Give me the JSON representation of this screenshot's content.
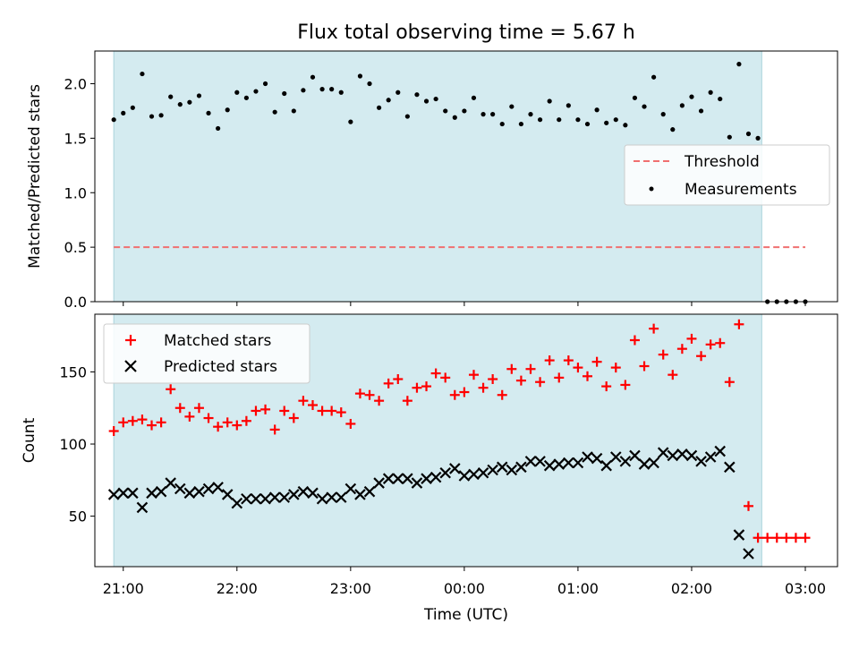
{
  "title": "Flux total observing time = 5.67 h",
  "xlabel": "Time (UTC)",
  "colors": {
    "threshold": "#f07070",
    "observing_span": "#d4ebf0",
    "observing_edge": "#a9d3dc",
    "matched": "#ff0000",
    "predicted": "#000000",
    "measurements": "#000000"
  },
  "chart_data": [
    {
      "type": "scatter",
      "title": "Flux total observing time = 5.67 h",
      "ylabel": "Matched/Predicted stars",
      "x_type": "time",
      "xlim": [
        "20:45",
        "03:17"
      ],
      "ylim": [
        0,
        2.3
      ],
      "x_ticks": [
        "21:00",
        "22:00",
        "23:00",
        "00:00",
        "01:00",
        "02:00",
        "03:00"
      ],
      "y_ticks": [
        "0.0",
        "0.5",
        "1.0",
        "1.5",
        "2.0"
      ],
      "shaded_span": [
        "20:55",
        "02:37"
      ],
      "legend_position": "center-right",
      "legend": [
        "Threshold",
        "Measurements"
      ],
      "threshold": {
        "name": "Threshold",
        "value": 0.5,
        "x_range": [
          "20:55",
          "03:00"
        ],
        "style": "dashed"
      },
      "series": [
        {
          "name": "Measurements",
          "x": [
            "20:55",
            "21:00",
            "21:05",
            "21:10",
            "21:15",
            "21:20",
            "21:25",
            "21:30",
            "21:35",
            "21:40",
            "21:45",
            "21:50",
            "21:55",
            "22:00",
            "22:05",
            "22:10",
            "22:15",
            "22:20",
            "22:25",
            "22:30",
            "22:35",
            "22:40",
            "22:45",
            "22:50",
            "22:55",
            "23:00",
            "23:05",
            "23:10",
            "23:15",
            "23:20",
            "23:25",
            "23:30",
            "23:35",
            "23:40",
            "23:45",
            "23:50",
            "23:55",
            "00:00",
            "00:05",
            "00:10",
            "00:15",
            "00:20",
            "00:25",
            "00:30",
            "00:35",
            "00:40",
            "00:45",
            "00:50",
            "00:55",
            "01:00",
            "01:05",
            "01:10",
            "01:15",
            "01:20",
            "01:25",
            "01:30",
            "01:35",
            "01:40",
            "01:45",
            "01:50",
            "01:55",
            "02:00",
            "02:05",
            "02:10",
            "02:15",
            "02:20",
            "02:25",
            "02:30",
            "02:35",
            "02:40",
            "02:45",
            "02:50",
            "02:55",
            "03:00"
          ],
          "y": [
            1.67,
            1.73,
            1.78,
            2.09,
            1.7,
            1.71,
            1.88,
            1.81,
            1.83,
            1.89,
            1.73,
            1.59,
            1.76,
            1.92,
            1.87,
            1.93,
            2.0,
            1.74,
            1.91,
            1.75,
            1.94,
            2.06,
            1.95,
            1.95,
            1.92,
            1.65,
            2.07,
            2.0,
            1.78,
            1.85,
            1.92,
            1.7,
            1.9,
            1.84,
            1.86,
            1.75,
            1.69,
            1.75,
            1.87,
            1.72,
            1.72,
            1.63,
            1.79,
            1.63,
            1.72,
            1.67,
            1.84,
            1.67,
            1.8,
            1.67,
            1.63,
            1.76,
            1.64,
            1.67,
            1.62,
            1.87,
            1.79,
            2.06,
            1.72,
            1.58,
            1.8,
            1.88,
            1.75,
            1.92,
            1.86,
            1.51,
            2.18,
            1.54,
            1.5,
            0,
            0,
            0,
            0,
            0
          ]
        }
      ]
    },
    {
      "type": "scatter",
      "ylabel": "Count",
      "x_type": "time",
      "xlim": [
        "20:45",
        "03:17"
      ],
      "ylim": [
        15,
        190
      ],
      "x_ticks": [
        "21:00",
        "22:00",
        "23:00",
        "00:00",
        "01:00",
        "02:00",
        "03:00"
      ],
      "y_ticks": [
        "50",
        "100",
        "150"
      ],
      "shaded_span": [
        "20:55",
        "02:37"
      ],
      "legend_position": "top-left",
      "legend": [
        "Matched stars",
        "Predicted stars"
      ],
      "x": [
        "20:55",
        "21:00",
        "21:05",
        "21:10",
        "21:15",
        "21:20",
        "21:25",
        "21:30",
        "21:35",
        "21:40",
        "21:45",
        "21:50",
        "21:55",
        "22:00",
        "22:05",
        "22:10",
        "22:15",
        "22:20",
        "22:25",
        "22:30",
        "22:35",
        "22:40",
        "22:45",
        "22:50",
        "22:55",
        "23:00",
        "23:05",
        "23:10",
        "23:15",
        "23:20",
        "23:25",
        "23:30",
        "23:35",
        "23:40",
        "23:45",
        "23:50",
        "23:55",
        "00:00",
        "00:05",
        "00:10",
        "00:15",
        "00:20",
        "00:25",
        "00:30",
        "00:35",
        "00:40",
        "00:45",
        "00:50",
        "00:55",
        "01:00",
        "01:05",
        "01:10",
        "01:15",
        "01:20",
        "01:25",
        "01:30",
        "01:35",
        "01:40",
        "01:45",
        "01:50",
        "01:55",
        "02:00",
        "02:05",
        "02:10",
        "02:15",
        "02:20",
        "02:25",
        "02:30",
        "02:35",
        "02:40",
        "02:45",
        "02:50",
        "02:55",
        "03:00"
      ],
      "series": [
        {
          "name": "Matched stars",
          "marker": "plus",
          "values": [
            109,
            115,
            116,
            117,
            113,
            115,
            138,
            125,
            119,
            125,
            118,
            112,
            115,
            113,
            116,
            123,
            124,
            110,
            123,
            118,
            130,
            127,
            123,
            123,
            122,
            114,
            135,
            134,
            130,
            142,
            145,
            130,
            139,
            140,
            149,
            146,
            134,
            136,
            148,
            139,
            145,
            134,
            152,
            144,
            152,
            143,
            158,
            146,
            158,
            153,
            147,
            157,
            140,
            153,
            141,
            172,
            154,
            180,
            162,
            148,
            166,
            173,
            161,
            169,
            170,
            143,
            183,
            57,
            35,
            35,
            35,
            35,
            35,
            35
          ]
        },
        {
          "name": "Predicted stars",
          "marker": "x",
          "values": [
            65,
            66,
            66,
            56,
            66,
            67,
            73,
            69,
            66,
            67,
            69,
            70,
            65,
            59,
            62,
            62,
            62,
            63,
            63,
            65,
            67,
            66,
            62,
            63,
            63,
            69,
            65,
            67,
            73,
            76,
            76,
            76,
            73,
            76,
            77,
            80,
            83,
            78,
            79,
            80,
            82,
            84,
            82,
            84,
            88,
            88,
            85,
            86,
            87,
            87,
            91,
            90,
            85,
            91,
            88,
            92,
            86,
            87,
            94,
            92,
            93,
            92,
            88,
            91,
            95,
            84,
            37,
            24,
            null,
            null,
            null,
            null,
            null,
            null
          ]
        }
      ]
    }
  ]
}
